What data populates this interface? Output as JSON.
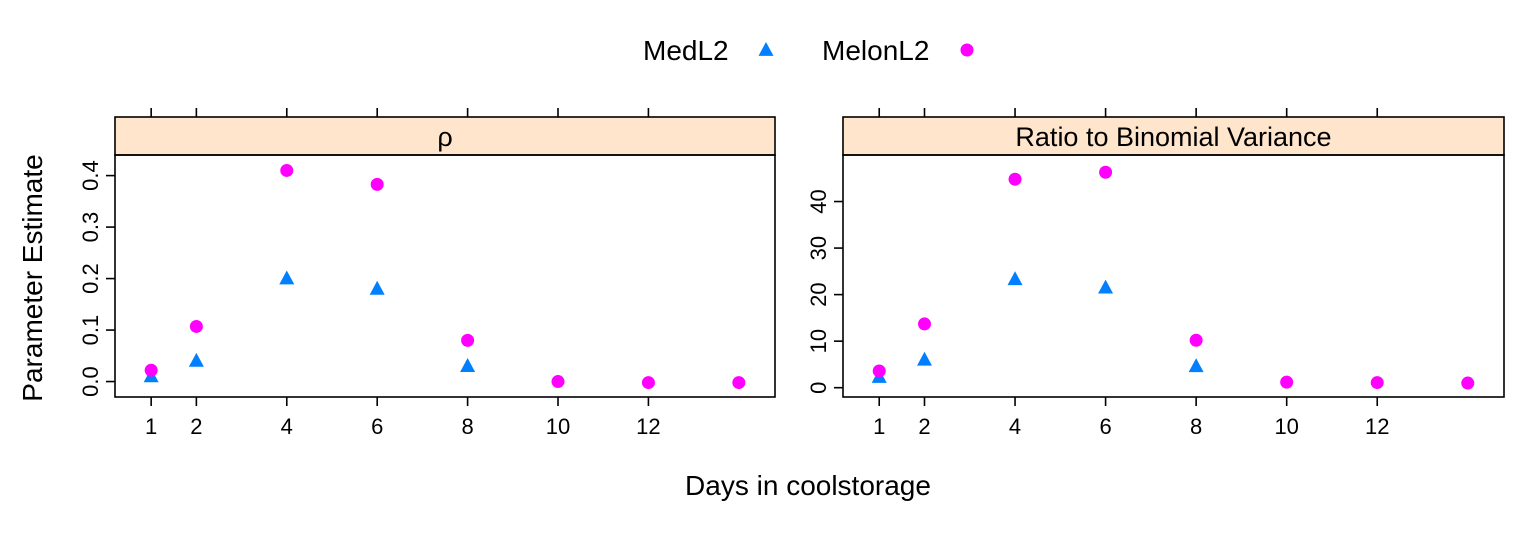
{
  "chart_data": {
    "type": "scatter",
    "xlabel": "Days in coolstorage",
    "ylabel": "Parameter Estimate",
    "x_ticks": [
      1,
      2,
      4,
      6,
      8,
      10,
      12
    ],
    "strip_color": "#ffe5cc",
    "legend": {
      "placement": "top-center",
      "items": [
        {
          "name": "MedL2",
          "marker": "triangle",
          "color": "#0080ff"
        },
        {
          "name": "MelonL2",
          "marker": "circle",
          "color": "#ff00ff"
        }
      ]
    },
    "panels": [
      {
        "title": "ρ",
        "xlim": [
          0.2,
          14.8
        ],
        "ylim": [
          -0.03,
          0.44
        ],
        "y_ticks": [
          0.0,
          0.1,
          0.2,
          0.3,
          0.4
        ],
        "y_tick_labels": [
          "0.0",
          "0.1",
          "0.2",
          "0.3",
          "0.4"
        ],
        "series": [
          {
            "name": "MedL2",
            "x": [
              1,
              2,
              4,
              6,
              8
            ],
            "y": [
              0.01,
              0.04,
              0.2,
              0.18,
              0.03
            ]
          },
          {
            "name": "MelonL2",
            "x": [
              1,
              2,
              4,
              6,
              8,
              10,
              12,
              14
            ],
            "y": [
              0.022,
              0.107,
              0.41,
              0.383,
              0.08,
              0.0,
              -0.002,
              -0.002
            ]
          }
        ]
      },
      {
        "title": "Ratio to Binomial Variance",
        "xlim": [
          0.2,
          14.8
        ],
        "ylim": [
          -2,
          50
        ],
        "y_ticks": [
          0,
          10,
          20,
          30,
          40
        ],
        "y_tick_labels": [
          "0",
          "10",
          "20",
          "30",
          "40"
        ],
        "series": [
          {
            "name": "MedL2",
            "x": [
              1,
              2,
              4,
              6,
              8
            ],
            "y": [
              2.3,
              6,
              23.3,
              21.5,
              4.6
            ]
          },
          {
            "name": "MelonL2",
            "x": [
              1,
              2,
              4,
              6,
              8,
              10,
              12,
              14
            ],
            "y": [
              3.6,
              13.7,
              44.8,
              46.3,
              10.2,
              1.2,
              1.1,
              1.0
            ]
          }
        ]
      }
    ]
  }
}
